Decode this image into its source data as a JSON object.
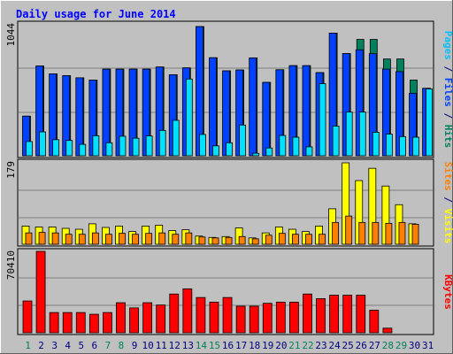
{
  "chart_data": [
    {
      "panel": "top",
      "type": "bar",
      "title": "Daily usage for June 2014",
      "ylim": [
        0,
        1044
      ],
      "y_max_label": "1044",
      "categories": [
        "1",
        "2",
        "3",
        "4",
        "5",
        "6",
        "7",
        "8",
        "9",
        "10",
        "11",
        "12",
        "13",
        "14",
        "15",
        "16",
        "17",
        "18",
        "19",
        "20",
        "21",
        "22",
        "23",
        "24",
        "25",
        "26",
        "27",
        "28",
        "29",
        "30",
        "31"
      ],
      "series": [
        {
          "name": "Hits",
          "values": [
            320,
            725,
            662,
            647,
            630,
            612,
            700,
            700,
            700,
            700,
            717,
            655,
            710,
            1044,
            792,
            686,
            693,
            791,
            593,
            695,
            728,
            728,
            672,
            991,
            826,
            940,
            940,
            782,
            782,
            612,
            545
          ]
        },
        {
          "name": "Pages",
          "values": [
            320,
            725,
            662,
            647,
            630,
            612,
            700,
            700,
            700,
            700,
            717,
            655,
            710,
            1044,
            792,
            686,
            693,
            791,
            593,
            695,
            728,
            728,
            672,
            991,
            826,
            856,
            825,
            700,
            680,
            505,
            545
          ]
        },
        {
          "name": "Files",
          "values": [
            115,
            193,
            130,
            124,
            92,
            162,
            105,
            158,
            142,
            160,
            205,
            286,
            620,
            172,
            80,
            105,
            248,
            20,
            63,
            164,
            150,
            72,
            583,
            240,
            353,
            353,
            190,
            175,
            155,
            150,
            540
          ]
        }
      ],
      "right_label_parts": [
        {
          "text": "Pages",
          "color": "#00c0ff"
        },
        {
          "text": " / ",
          "color": "#000080"
        },
        {
          "text": "Files",
          "color": "#0040ff"
        },
        {
          "text": " / ",
          "color": "#000080"
        },
        {
          "text": "Hits",
          "color": "#008060"
        }
      ]
    },
    {
      "panel": "middle",
      "type": "bar",
      "ylim": [
        0,
        179
      ],
      "y_max_label": "179",
      "categories": [
        "1",
        "2",
        "3",
        "4",
        "5",
        "6",
        "7",
        "8",
        "9",
        "10",
        "11",
        "12",
        "13",
        "14",
        "15",
        "16",
        "17",
        "18",
        "19",
        "20",
        "21",
        "22",
        "23",
        "24",
        "25",
        "26",
        "27",
        "28",
        "29",
        "30",
        "31"
      ],
      "series": [
        {
          "name": "Visits",
          "values": [
            40,
            38,
            38,
            35,
            33,
            45,
            37,
            40,
            28,
            40,
            42,
            30,
            32,
            18,
            15,
            17,
            36,
            14,
            25,
            38,
            33,
            28,
            40,
            78,
            179,
            140,
            167,
            128,
            87,
            45,
            0
          ]
        },
        {
          "name": "Sites",
          "values": [
            25,
            26,
            25,
            22,
            22,
            25,
            22,
            24,
            22,
            24,
            25,
            22,
            25,
            16,
            14,
            15,
            17,
            12,
            20,
            24,
            22,
            22,
            22,
            48,
            62,
            48,
            48,
            46,
            48,
            44,
            0
          ]
        }
      ],
      "right_label_parts": [
        {
          "text": "Sites",
          "color": "#ff8000"
        },
        {
          "text": " / ",
          "color": "#000080"
        },
        {
          "text": "Visits",
          "color": "#ffff00"
        }
      ]
    },
    {
      "panel": "bottom",
      "type": "bar",
      "ylim": [
        0,
        70410
      ],
      "y_max_label": "70410",
      "categories": [
        "1",
        "2",
        "3",
        "4",
        "5",
        "6",
        "7",
        "8",
        "9",
        "10",
        "11",
        "12",
        "13",
        "14",
        "15",
        "16",
        "17",
        "18",
        "19",
        "20",
        "21",
        "22",
        "23",
        "24",
        "25",
        "26",
        "27",
        "28",
        "29",
        "30",
        "31"
      ],
      "series": [
        {
          "name": "KBytes",
          "values": [
            27500,
            70410,
            17500,
            17500,
            17500,
            16000,
            17500,
            26000,
            21500,
            26000,
            24000,
            33500,
            38000,
            30500,
            26500,
            30500,
            23000,
            23000,
            25500,
            26500,
            26500,
            33500,
            29500,
            32500,
            32500,
            32500,
            19500,
            4000,
            0,
            0,
            0
          ]
        }
      ],
      "right_label_parts": [
        {
          "text": "KBytes",
          "color": "#ff0000"
        }
      ]
    }
  ],
  "weekend_days": [
    1,
    7,
    8,
    14,
    15,
    21,
    22,
    28,
    29
  ],
  "colors": {
    "background": "#c0c0c0",
    "hits": "#00805c",
    "files": "#0040ff",
    "pages": "#00e0ff",
    "visits": "#ffff00",
    "sites": "#ff8000",
    "kbytes": "#ff0000",
    "title": "#0000ff",
    "day_label": "#000080",
    "weekend_label": "#00805c"
  }
}
